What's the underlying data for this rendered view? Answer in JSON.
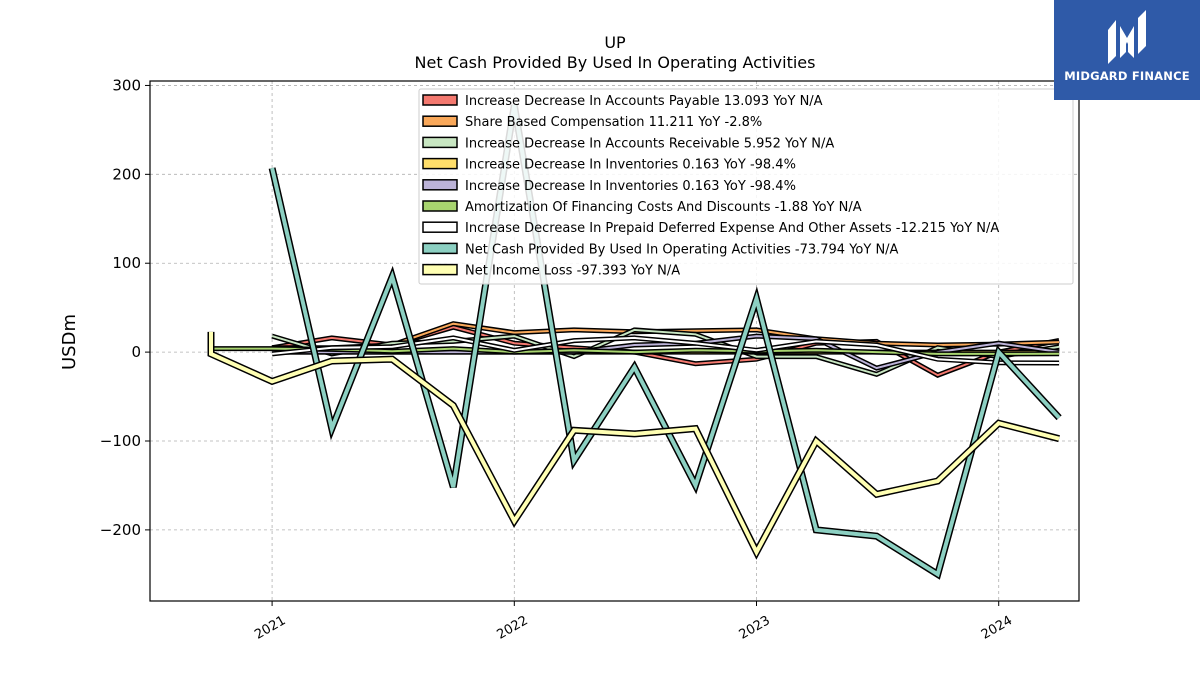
{
  "chart_data": {
    "type": "line",
    "title": "UP",
    "subtitle": "Net Cash Provided By Used In Operating Activities",
    "xlabel": "",
    "ylabel": "USDm",
    "xlim": [
      "2020-07-01",
      "2024-05-01"
    ],
    "ylim": [
      -280,
      305
    ],
    "xticks": [
      "2021",
      "2022",
      "2023",
      "2024"
    ],
    "yticks": [
      300,
      200,
      100,
      0,
      -100,
      -200
    ],
    "ytick_labels": [
      "300",
      "200",
      "100",
      "0",
      "−100",
      "−200"
    ],
    "grid": true,
    "legend_position": "top-right",
    "x": [
      "2020-10-01",
      "2021-01-01",
      "2021-04-01",
      "2021-07-01",
      "2021-10-01",
      "2022-01-01",
      "2022-04-01",
      "2022-07-01",
      "2022-10-01",
      "2023-01-01",
      "2023-04-01",
      "2023-07-01",
      "2023-10-01",
      "2024-01-01",
      "2024-04-01"
    ],
    "series": [
      {
        "name": "Increase Decrease In Accounts Payable",
        "label": "13.093 YoY N/A",
        "color": "#f4796f",
        "width": 2,
        "values": [
          null,
          5,
          16,
          8,
          28,
          10,
          5,
          0,
          -13,
          -8,
          10,
          12,
          -26,
          0,
          13.093
        ]
      },
      {
        "name": "Share Based Compensation",
        "label": "11.211 YoY -2.8%",
        "color": "#f9a85a",
        "width": 2,
        "values": [
          null,
          5,
          5,
          8,
          32,
          22,
          25,
          23,
          24,
          25,
          15,
          10,
          8,
          9,
          11.211
        ]
      },
      {
        "name": "Increase Decrease In Accounts Receivable",
        "label": "5.952 YoY N/A",
        "color": "#c8e6c2",
        "width": 2,
        "values": [
          null,
          18,
          -2,
          10,
          12,
          18,
          -5,
          25,
          20,
          -5,
          -5,
          -25,
          5,
          -5,
          5.952
        ]
      },
      {
        "name": "Increase Decrease In Inventories",
        "label": "0.163 YoY -98.4%",
        "color": "#ffde6a",
        "width": 2,
        "values": [
          null,
          0,
          0,
          0,
          0,
          0,
          0,
          0,
          0,
          0,
          0,
          0,
          0,
          0,
          0.163
        ]
      },
      {
        "name": "Increase Decrease In Inventories",
        "label": "0.163 YoY -98.4%",
        "color": "#bcb3d8",
        "width": 2,
        "values": [
          null,
          0,
          0,
          0,
          0,
          0,
          0,
          8,
          10,
          18,
          15,
          -18,
          0,
          10,
          0.163
        ]
      },
      {
        "name": "Amortization Of Financing Costs And Discounts",
        "label": "-1.88 YoY N/A",
        "color": "#a8d46f",
        "width": 2,
        "values": [
          4,
          4,
          3,
          1,
          4,
          0,
          2,
          0,
          2,
          1,
          2,
          0,
          -2,
          -2,
          -1.88
        ]
      },
      {
        "name": "Increase Decrease In Prepaid Deferred Expense And Other Assets",
        "label": "-12.215 YoY N/A",
        "color": "#ffffff",
        "width": 2,
        "values": [
          null,
          -2,
          5,
          6,
          16,
          2,
          13,
          16,
          10,
          2,
          12,
          8,
          -8,
          -12,
          -12.215
        ]
      },
      {
        "name": "Net Cash Provided By Used In Operating Activities",
        "label": "-73.794 YoY N/A",
        "color": "#8cd0c2",
        "width": 4,
        "values": [
          null,
          207,
          -86,
          85,
          -152,
          278,
          -122,
          -17,
          -150,
          60,
          -200,
          -207,
          -250,
          0,
          -73.794
        ]
      },
      {
        "name": "Net Income Loss",
        "label": "-97.393 YoY N/A",
        "color": "#ffffb3",
        "width": 4,
        "values": [
          -2,
          -33,
          -10,
          -8,
          -60,
          -190,
          -88,
          -92,
          -86,
          -225,
          -100,
          -160,
          -145,
          -80,
          -97.393
        ]
      }
    ]
  },
  "logo": {
    "name": "MIDGARD FINANCE",
    "icon": "midgard-logo-icon"
  }
}
